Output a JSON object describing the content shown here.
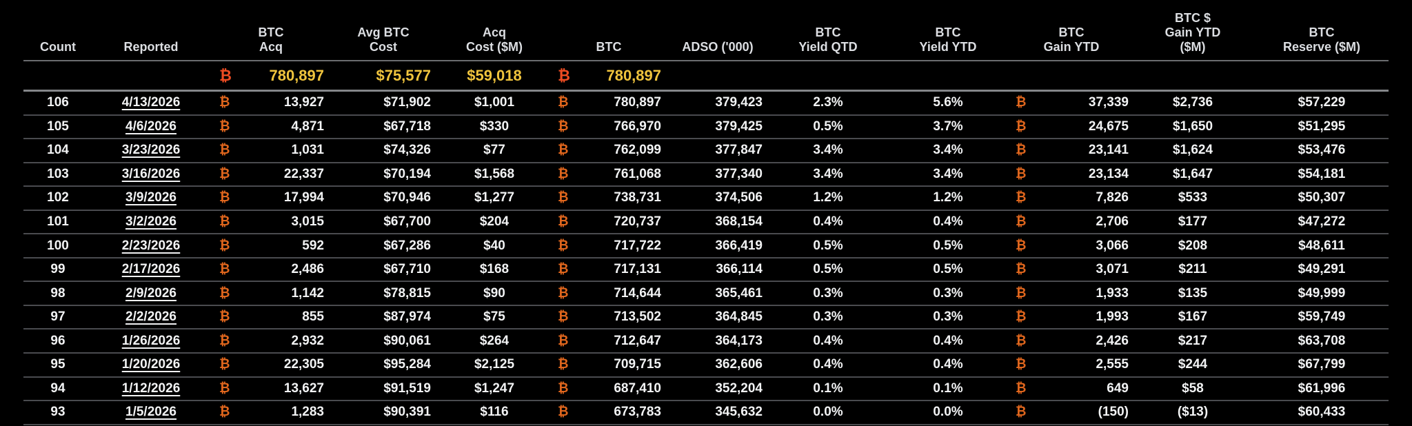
{
  "table": {
    "btc_symbol": "₿",
    "colors": {
      "background": "#000000",
      "row_text": "#f2f3f4",
      "btc_symbol_orange": "#e0661d",
      "summary_btc_symbol": "#ee4c22",
      "summary_gold": "#f0c43d",
      "separator_gray": "#4a4b4f"
    },
    "columns": [
      "Count",
      "Reported",
      "BTC\nAcq",
      "Avg BTC\nCost",
      "Acq\nCost ($M)",
      "BTC",
      "ADSO ('000)",
      "BTC\nYield QTD",
      "BTC\nYield YTD",
      "BTC\nGain YTD",
      "BTC $\nGain YTD\n($M)",
      "BTC\nReserve ($M)"
    ],
    "summary": {
      "btc_acq": "780,897",
      "avg_cost": "$75,577",
      "acq_cost": "$59,018",
      "btc": "780,897"
    },
    "rows": [
      {
        "count": "106",
        "reported": "4/13/2026",
        "btc_acq": "13,927",
        "avg_cost": "$71,902",
        "acq_cost": "$1,001",
        "btc": "780,897",
        "adso": "379,423",
        "yield_qtd": "2.3%",
        "yield_ytd": "5.6%",
        "gain_ytd": "37,339",
        "gain_usd": "$2,736",
        "reserve": "$57,229"
      },
      {
        "count": "105",
        "reported": "4/6/2026",
        "btc_acq": "4,871",
        "avg_cost": "$67,718",
        "acq_cost": "$330",
        "btc": "766,970",
        "adso": "379,425",
        "yield_qtd": "0.5%",
        "yield_ytd": "3.7%",
        "gain_ytd": "24,675",
        "gain_usd": "$1,650",
        "reserve": "$51,295"
      },
      {
        "count": "104",
        "reported": "3/23/2026",
        "btc_acq": "1,031",
        "avg_cost": "$74,326",
        "acq_cost": "$77",
        "btc": "762,099",
        "adso": "377,847",
        "yield_qtd": "3.4%",
        "yield_ytd": "3.4%",
        "gain_ytd": "23,141",
        "gain_usd": "$1,624",
        "reserve": "$53,476"
      },
      {
        "count": "103",
        "reported": "3/16/2026",
        "btc_acq": "22,337",
        "avg_cost": "$70,194",
        "acq_cost": "$1,568",
        "btc": "761,068",
        "adso": "377,340",
        "yield_qtd": "3.4%",
        "yield_ytd": "3.4%",
        "gain_ytd": "23,134",
        "gain_usd": "$1,647",
        "reserve": "$54,181"
      },
      {
        "count": "102",
        "reported": "3/9/2026",
        "btc_acq": "17,994",
        "avg_cost": "$70,946",
        "acq_cost": "$1,277",
        "btc": "738,731",
        "adso": "374,506",
        "yield_qtd": "1.2%",
        "yield_ytd": "1.2%",
        "gain_ytd": "7,826",
        "gain_usd": "$533",
        "reserve": "$50,307"
      },
      {
        "count": "101",
        "reported": "3/2/2026",
        "btc_acq": "3,015",
        "avg_cost": "$67,700",
        "acq_cost": "$204",
        "btc": "720,737",
        "adso": "368,154",
        "yield_qtd": "0.4%",
        "yield_ytd": "0.4%",
        "gain_ytd": "2,706",
        "gain_usd": "$177",
        "reserve": "$47,272"
      },
      {
        "count": "100",
        "reported": "2/23/2026",
        "btc_acq": "592",
        "avg_cost": "$67,286",
        "acq_cost": "$40",
        "btc": "717,722",
        "adso": "366,419",
        "yield_qtd": "0.5%",
        "yield_ytd": "0.5%",
        "gain_ytd": "3,066",
        "gain_usd": "$208",
        "reserve": "$48,611"
      },
      {
        "count": "99",
        "reported": "2/17/2026",
        "btc_acq": "2,486",
        "avg_cost": "$67,710",
        "acq_cost": "$168",
        "btc": "717,131",
        "adso": "366,114",
        "yield_qtd": "0.5%",
        "yield_ytd": "0.5%",
        "gain_ytd": "3,071",
        "gain_usd": "$211",
        "reserve": "$49,291"
      },
      {
        "count": "98",
        "reported": "2/9/2026",
        "btc_acq": "1,142",
        "avg_cost": "$78,815",
        "acq_cost": "$90",
        "btc": "714,644",
        "adso": "365,461",
        "yield_qtd": "0.3%",
        "yield_ytd": "0.3%",
        "gain_ytd": "1,933",
        "gain_usd": "$135",
        "reserve": "$49,999"
      },
      {
        "count": "97",
        "reported": "2/2/2026",
        "btc_acq": "855",
        "avg_cost": "$87,974",
        "acq_cost": "$75",
        "btc": "713,502",
        "adso": "364,845",
        "yield_qtd": "0.3%",
        "yield_ytd": "0.3%",
        "gain_ytd": "1,993",
        "gain_usd": "$167",
        "reserve": "$59,749"
      },
      {
        "count": "96",
        "reported": "1/26/2026",
        "btc_acq": "2,932",
        "avg_cost": "$90,061",
        "acq_cost": "$264",
        "btc": "712,647",
        "adso": "364,173",
        "yield_qtd": "0.4%",
        "yield_ytd": "0.4%",
        "gain_ytd": "2,426",
        "gain_usd": "$217",
        "reserve": "$63,708"
      },
      {
        "count": "95",
        "reported": "1/20/2026",
        "btc_acq": "22,305",
        "avg_cost": "$95,284",
        "acq_cost": "$2,125",
        "btc": "709,715",
        "adso": "362,606",
        "yield_qtd": "0.4%",
        "yield_ytd": "0.4%",
        "gain_ytd": "2,555",
        "gain_usd": "$244",
        "reserve": "$67,799"
      },
      {
        "count": "94",
        "reported": "1/12/2026",
        "btc_acq": "13,627",
        "avg_cost": "$91,519",
        "acq_cost": "$1,247",
        "btc": "687,410",
        "adso": "352,204",
        "yield_qtd": "0.1%",
        "yield_ytd": "0.1%",
        "gain_ytd": "649",
        "gain_usd": "$58",
        "reserve": "$61,996"
      },
      {
        "count": "93",
        "reported": "1/5/2026",
        "btc_acq": "1,283",
        "avg_cost": "$90,391",
        "acq_cost": "$116",
        "btc": "673,783",
        "adso": "345,632",
        "yield_qtd": "0.0%",
        "yield_ytd": "0.0%",
        "gain_ytd": "(150)",
        "gain_usd": "($13)",
        "reserve": "$60,433"
      }
    ]
  }
}
